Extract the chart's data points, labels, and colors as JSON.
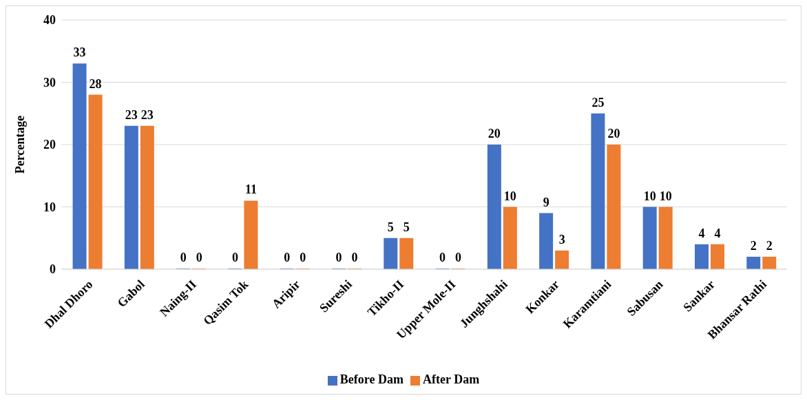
{
  "chart_data": {
    "type": "bar",
    "ylabel": "Percentage",
    "categories": [
      "Dhal Dhoro",
      "Gabol",
      "Naing-II",
      "Qasim Tok",
      "Aripir",
      "Sureshi",
      "Tikho-II",
      "Upper Mole-II",
      "Junghshahi",
      "Konkar",
      "Karamtiani",
      "Sabusan",
      "Sankar",
      "Bhansar Rathi"
    ],
    "series": [
      {
        "name": "Before Dam",
        "color": "#4472c4",
        "values": [
          33,
          23,
          0,
          0,
          0,
          0,
          5,
          0,
          20,
          9,
          25,
          10,
          4,
          2
        ]
      },
      {
        "name": "After Dam",
        "color": "#ed7d31",
        "values": [
          28,
          23,
          0,
          11,
          0,
          0,
          5,
          0,
          10,
          3,
          20,
          10,
          4,
          2
        ]
      }
    ],
    "ylim": [
      0,
      40
    ],
    "yticks": [
      0,
      10,
      20,
      30,
      40
    ],
    "grid": "y",
    "legend": "bottom",
    "data_labels": true
  }
}
